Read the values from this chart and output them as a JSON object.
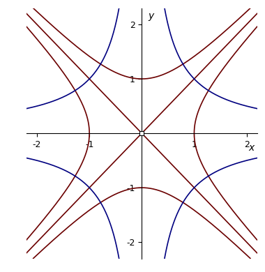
{
  "xlim": [
    -2.2,
    2.2
  ],
  "ylim": [
    -2.3,
    2.3
  ],
  "xlabel": "x",
  "ylabel": "y",
  "background_color": "#ffffff",
  "red_color": "#6B0000",
  "blue_color": "#000080",
  "line_width": 1.2,
  "figsize": [
    3.8,
    3.9
  ],
  "dpi": 100,
  "n_points": 2000
}
